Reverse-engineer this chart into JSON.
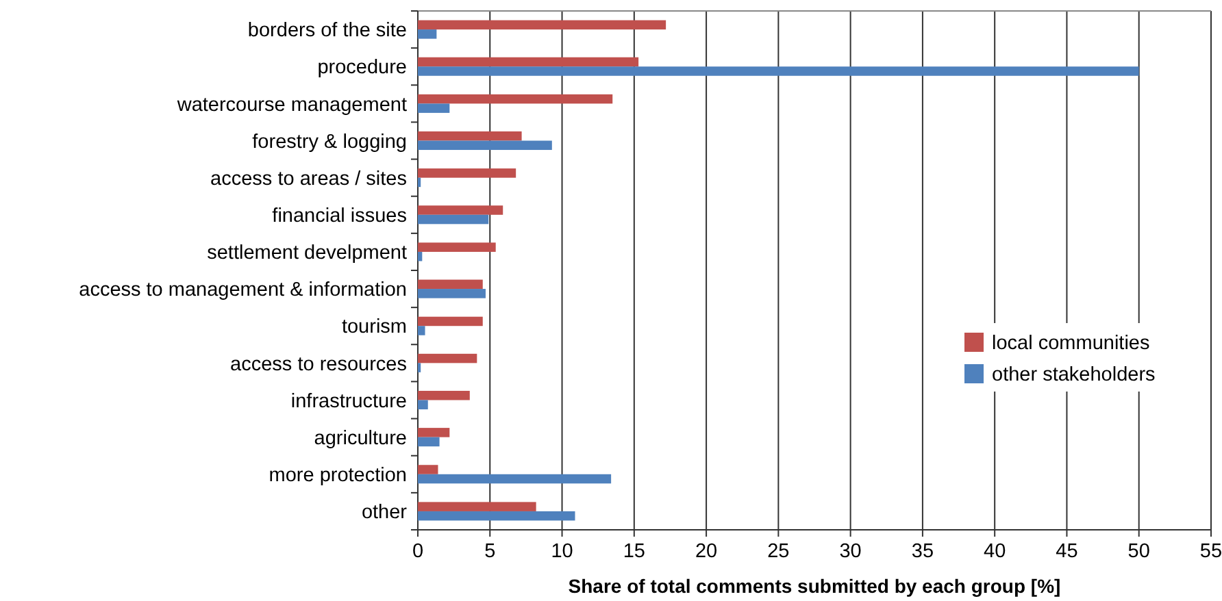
{
  "chart_data": {
    "type": "bar",
    "orientation": "horizontal",
    "xlabel": "Share of total comments submitted by each group [%]",
    "categories": [
      "borders of the site",
      "procedure",
      "watercourse management",
      "forestry & logging",
      "access to areas / sites",
      "financial issues",
      "settlement develpment",
      "access to management & information",
      "tourism",
      "access to resources",
      "infrastructure",
      "agriculture",
      "more protection",
      "other"
    ],
    "series": [
      {
        "name": "local communities",
        "color": "#c0504d",
        "values": [
          17.2,
          15.3,
          13.5,
          7.2,
          6.8,
          5.9,
          5.4,
          4.5,
          4.5,
          4.1,
          3.6,
          2.2,
          1.4,
          8.2
        ]
      },
      {
        "name": "other stakeholders",
        "color": "#4f81bd",
        "values": [
          1.3,
          50,
          2.2,
          9.3,
          0.2,
          4.9,
          0.3,
          4.7,
          0.5,
          0.2,
          0.7,
          1.5,
          13.4,
          10.9
        ]
      }
    ],
    "xlim": [
      0,
      55
    ],
    "xticks": [
      0,
      5,
      10,
      15,
      20,
      25,
      30,
      35,
      40,
      45,
      50,
      55
    ],
    "grid": "x",
    "legend": "right"
  }
}
